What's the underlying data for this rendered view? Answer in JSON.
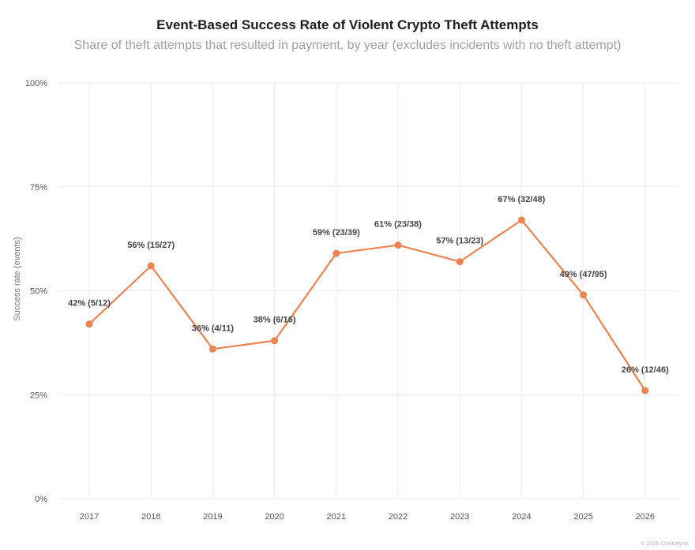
{
  "title": "Event-Based Success Rate of Violent Crypto Theft Attempts",
  "subtitle": "Share of theft attempts that resulted in payment, by year (excludes incidents with no theft attempt)",
  "footer": "© 2026 Chainalysis",
  "colors": {
    "series": "#ec8350",
    "grid": "#ebebeb"
  },
  "chart_data": {
    "type": "line",
    "categories": [
      "2017",
      "2018",
      "2019",
      "2020",
      "2021",
      "2022",
      "2023",
      "2024",
      "2025",
      "2026"
    ],
    "values": [
      42,
      56,
      36,
      38,
      59,
      61,
      57,
      67,
      49,
      26
    ],
    "data_labels": [
      "42% (5/12)",
      "56% (15/27)",
      "36% (4/11)",
      "38% (6/16)",
      "59% (23/39)",
      "61% (23/38)",
      "57% (13/23)",
      "67% (32/48)",
      "49% (47/95)",
      "26% (12/46)"
    ],
    "ylabel": "Success rate (events)",
    "ylim": [
      0,
      100
    ],
    "yticks": [
      0,
      25,
      50,
      75,
      100
    ],
    "ytick_labels": [
      "0%",
      "25%",
      "50%",
      "75%",
      "100%"
    ],
    "grid": true
  }
}
